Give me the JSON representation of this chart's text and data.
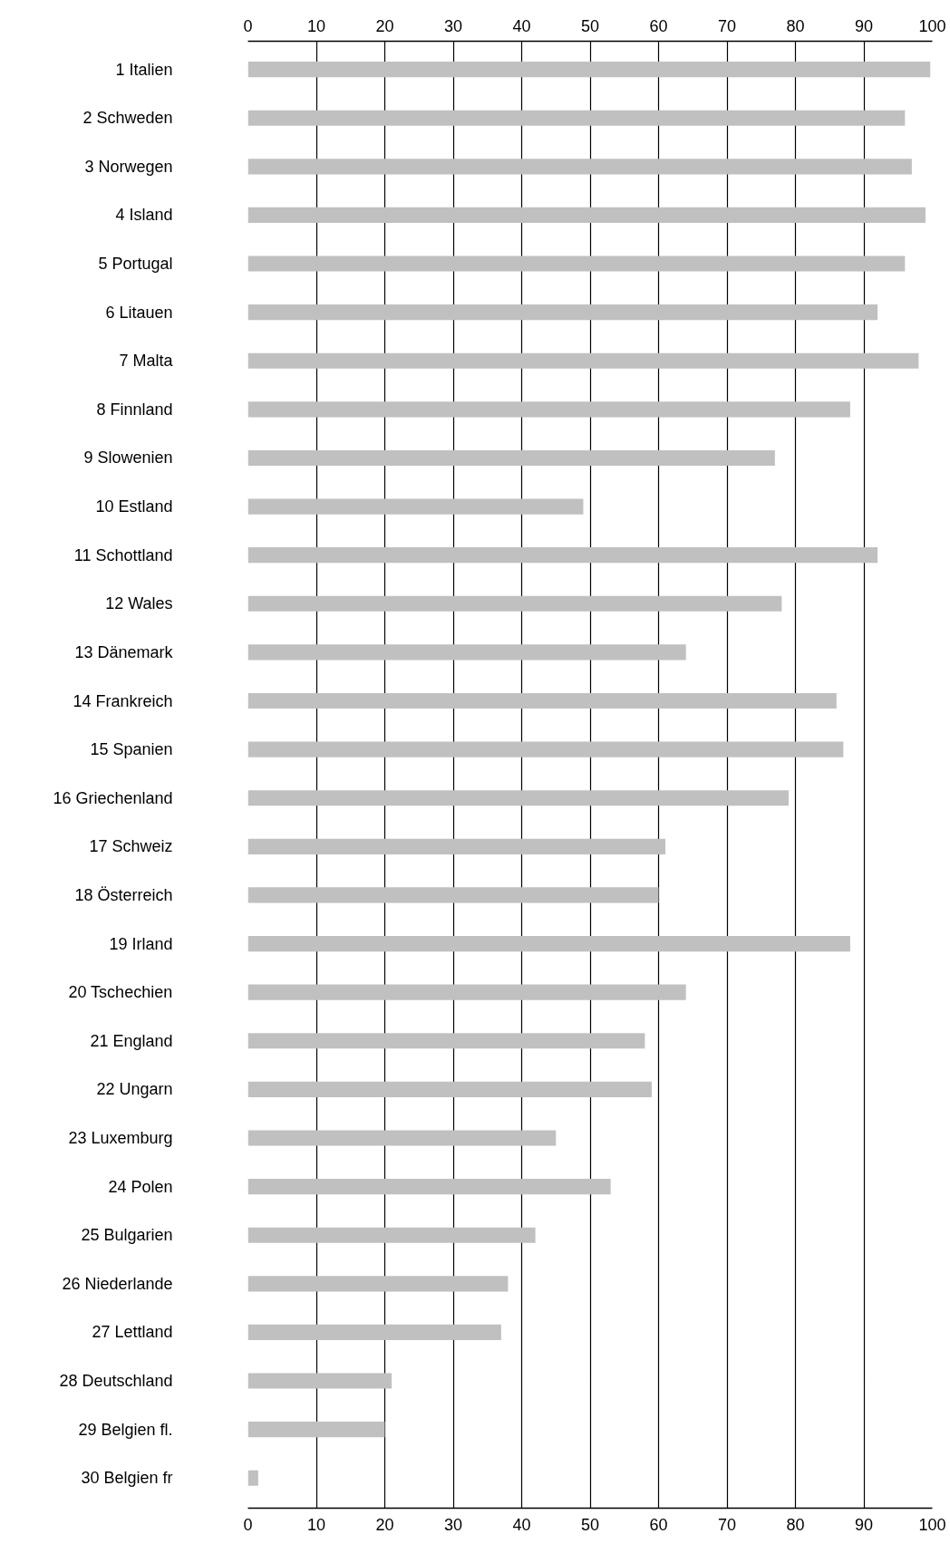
{
  "chart_data": {
    "type": "bar",
    "orientation": "horizontal",
    "categories": [
      "1 Italien",
      "2 Schweden",
      "3 Norwegen",
      "4 Island",
      "5 Portugal",
      "6 Litauen",
      "7 Malta",
      "8 Finnland",
      "9 Slowenien",
      "10 Estland",
      "11 Schottland",
      "12 Wales",
      "13 Dänemark",
      "14 Frankreich",
      "15 Spanien",
      "16 Griechenland",
      "17 Schweiz",
      "18 Österreich",
      "19 Irland",
      "20 Tschechien",
      "21 England",
      "22 Ungarn",
      "23 Luxemburg",
      "24 Polen",
      "25 Bulgarien",
      "26 Niederlande",
      "27 Lettland",
      "28 Deutschland",
      "29 Belgien fl.",
      "30 Belgien fr"
    ],
    "values": [
      99.7,
      96,
      97,
      99,
      96,
      92,
      98,
      88,
      77,
      49,
      92,
      78,
      64,
      86,
      87,
      79,
      61,
      60,
      88,
      64,
      58,
      59,
      45,
      53,
      42,
      38,
      37,
      21,
      20,
      1.5
    ],
    "color": "#c0c0c0",
    "xlim": [
      0,
      100
    ],
    "xticks": [
      0,
      10,
      20,
      30,
      40,
      50,
      60,
      70,
      80,
      90,
      100
    ],
    "x2lim": [
      0,
      100
    ],
    "x2ticks": [
      0,
      10,
      20,
      30,
      40,
      50,
      60,
      70,
      80,
      90,
      100
    ],
    "grid": "x"
  }
}
